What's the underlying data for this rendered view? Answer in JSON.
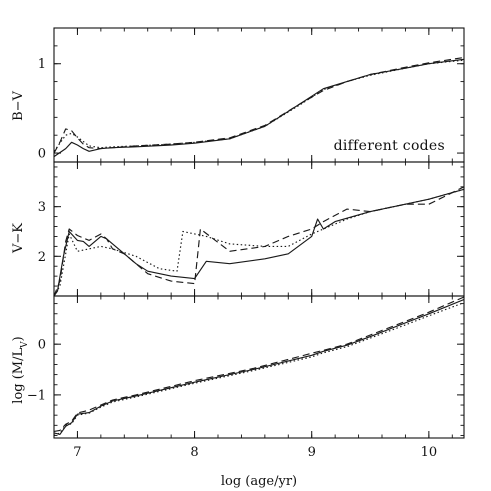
{
  "chart_data": {
    "type": "line",
    "xlabel": "log (age/yr)",
    "xlim": [
      6.8,
      10.3
    ],
    "x_ticks": [
      7,
      8,
      9,
      10
    ],
    "x_tick_labels": [
      "7",
      "8",
      "9",
      "10"
    ],
    "panels": [
      {
        "id": "bv",
        "ylabel": "B−V",
        "ylim": [
          -0.1,
          1.4
        ],
        "y_ticks": [
          0,
          1
        ],
        "y_tick_labels": [
          "0",
          "1"
        ],
        "annotation": "different codes",
        "series": [
          {
            "style": "solid",
            "x": [
              6.8,
              6.9,
              6.95,
              7.0,
              7.05,
              7.1,
              7.2,
              7.3,
              7.5,
              7.8,
              8.0,
              8.3,
              8.6,
              8.9,
              9.1,
              9.3,
              9.5,
              9.8,
              10.0,
              10.3
            ],
            "y": [
              -0.04,
              0.05,
              0.12,
              0.09,
              0.05,
              0.02,
              0.05,
              0.06,
              0.07,
              0.09,
              0.11,
              0.16,
              0.3,
              0.55,
              0.72,
              0.8,
              0.88,
              0.95,
              1.0,
              1.05
            ]
          },
          {
            "style": "dashed",
            "x": [
              6.8,
              6.85,
              6.9,
              6.95,
              7.0,
              7.05,
              7.1,
              7.2,
              7.3,
              7.5,
              7.8,
              8.0,
              8.3,
              8.6,
              8.9,
              9.1,
              9.3,
              9.5,
              9.8,
              10.0,
              10.3
            ],
            "y": [
              0.0,
              0.12,
              0.27,
              0.25,
              0.17,
              0.1,
              0.06,
              0.05,
              0.06,
              0.08,
              0.1,
              0.12,
              0.17,
              0.31,
              0.55,
              0.7,
              0.8,
              0.88,
              0.96,
              1.01,
              1.07
            ]
          },
          {
            "style": "dotted",
            "x": [
              6.8,
              6.9,
              6.95,
              7.0,
              7.1,
              7.2,
              7.3,
              7.5,
              7.8,
              8.0,
              8.3,
              8.6,
              8.9,
              9.1,
              9.3,
              9.5,
              9.8,
              10.0,
              10.3
            ],
            "y": [
              0.02,
              0.2,
              0.22,
              0.18,
              0.08,
              0.06,
              0.07,
              0.08,
              0.1,
              0.12,
              0.16,
              0.3,
              0.54,
              0.71,
              0.8,
              0.87,
              0.95,
              1.0,
              1.04
            ]
          }
        ]
      },
      {
        "id": "vk",
        "ylabel": "V−K",
        "ylim": [
          1.2,
          3.9
        ],
        "y_ticks": [
          2,
          3
        ],
        "y_tick_labels": [
          "2",
          "3"
        ],
        "annotation": "",
        "series": [
          {
            "style": "solid",
            "x": [
              6.8,
              6.83,
              6.88,
              6.93,
              7.0,
              7.05,
              7.1,
              7.2,
              7.25,
              7.3,
              7.5,
              7.6,
              7.8,
              8.0,
              8.1,
              8.3,
              8.6,
              8.8,
              9.0,
              9.05,
              9.1,
              9.2,
              9.5,
              9.8,
              10.0,
              10.3
            ],
            "y": [
              1.2,
              1.3,
              2.0,
              2.5,
              2.32,
              2.3,
              2.2,
              2.4,
              2.35,
              2.25,
              1.85,
              1.7,
              1.6,
              1.55,
              1.9,
              1.85,
              1.95,
              2.05,
              2.4,
              2.75,
              2.55,
              2.7,
              2.9,
              3.05,
              3.15,
              3.35
            ]
          },
          {
            "style": "dashed",
            "x": [
              6.8,
              6.85,
              6.9,
              6.93,
              7.0,
              7.1,
              7.2,
              7.25,
              7.3,
              7.4,
              7.6,
              7.8,
              8.0,
              8.05,
              8.3,
              8.6,
              8.8,
              9.0,
              9.1,
              9.3,
              9.5,
              9.8,
              10.0,
              10.3
            ],
            "y": [
              1.2,
              1.5,
              2.3,
              2.55,
              2.42,
              2.32,
              2.45,
              2.35,
              2.15,
              2.05,
              1.65,
              1.5,
              1.45,
              2.55,
              2.1,
              2.2,
              2.4,
              2.55,
              2.7,
              2.95,
              2.9,
              3.05,
              3.05,
              3.4
            ]
          },
          {
            "style": "dotted",
            "x": [
              6.8,
              6.85,
              6.93,
              7.0,
              7.1,
              7.2,
              7.3,
              7.5,
              7.7,
              7.85,
              7.9,
              8.1,
              8.3,
              8.6,
              8.8,
              9.0,
              9.1,
              9.3,
              9.5,
              9.8,
              10.0,
              10.3
            ],
            "y": [
              1.2,
              1.4,
              2.45,
              2.1,
              2.15,
              2.2,
              2.15,
              2.0,
              1.75,
              1.7,
              2.5,
              2.4,
              2.25,
              2.2,
              2.2,
              2.45,
              2.55,
              2.75,
              2.9,
              3.05,
              3.15,
              3.35
            ]
          }
        ]
      },
      {
        "id": "ml",
        "ylabel": "log (M/L_V)",
        "ylim": [
          -1.85,
          0.95
        ],
        "y_ticks": [
          -1,
          0
        ],
        "y_tick_labels": [
          "−1",
          "0"
        ],
        "annotation": "",
        "series": [
          {
            "style": "solid",
            "x": [
              6.8,
              6.85,
              6.9,
              6.95,
              7.0,
              7.1,
              7.2,
              7.3,
              7.5,
              8.0,
              8.5,
              9.0,
              9.1,
              9.3,
              9.5,
              9.8,
              10.0,
              10.3
            ],
            "y": [
              -1.75,
              -1.78,
              -1.62,
              -1.55,
              -1.38,
              -1.35,
              -1.22,
              -1.12,
              -1.02,
              -0.75,
              -0.5,
              -0.22,
              -0.14,
              -0.02,
              0.15,
              0.42,
              0.6,
              0.88
            ]
          },
          {
            "style": "dashed",
            "x": [
              6.8,
              6.85,
              6.9,
              6.95,
              7.0,
              7.1,
              7.2,
              7.3,
              7.5,
              8.0,
              8.5,
              9.0,
              9.1,
              9.3,
              9.5,
              9.8,
              10.0,
              10.3
            ],
            "y": [
              -1.72,
              -1.7,
              -1.58,
              -1.52,
              -1.36,
              -1.3,
              -1.2,
              -1.1,
              -1.0,
              -0.72,
              -0.48,
              -0.18,
              -0.12,
              0.0,
              0.18,
              0.45,
              0.63,
              0.93
            ]
          },
          {
            "style": "dotted",
            "x": [
              6.8,
              6.85,
              6.9,
              6.95,
              7.0,
              7.1,
              7.2,
              7.3,
              7.5,
              8.0,
              8.5,
              9.0,
              9.1,
              9.3,
              9.5,
              9.8,
              10.0,
              10.3
            ],
            "y": [
              -1.8,
              -1.75,
              -1.6,
              -1.57,
              -1.4,
              -1.36,
              -1.24,
              -1.14,
              -1.04,
              -0.77,
              -0.52,
              -0.25,
              -0.17,
              -0.05,
              0.12,
              0.38,
              0.56,
              0.82
            ]
          }
        ]
      }
    ]
  }
}
